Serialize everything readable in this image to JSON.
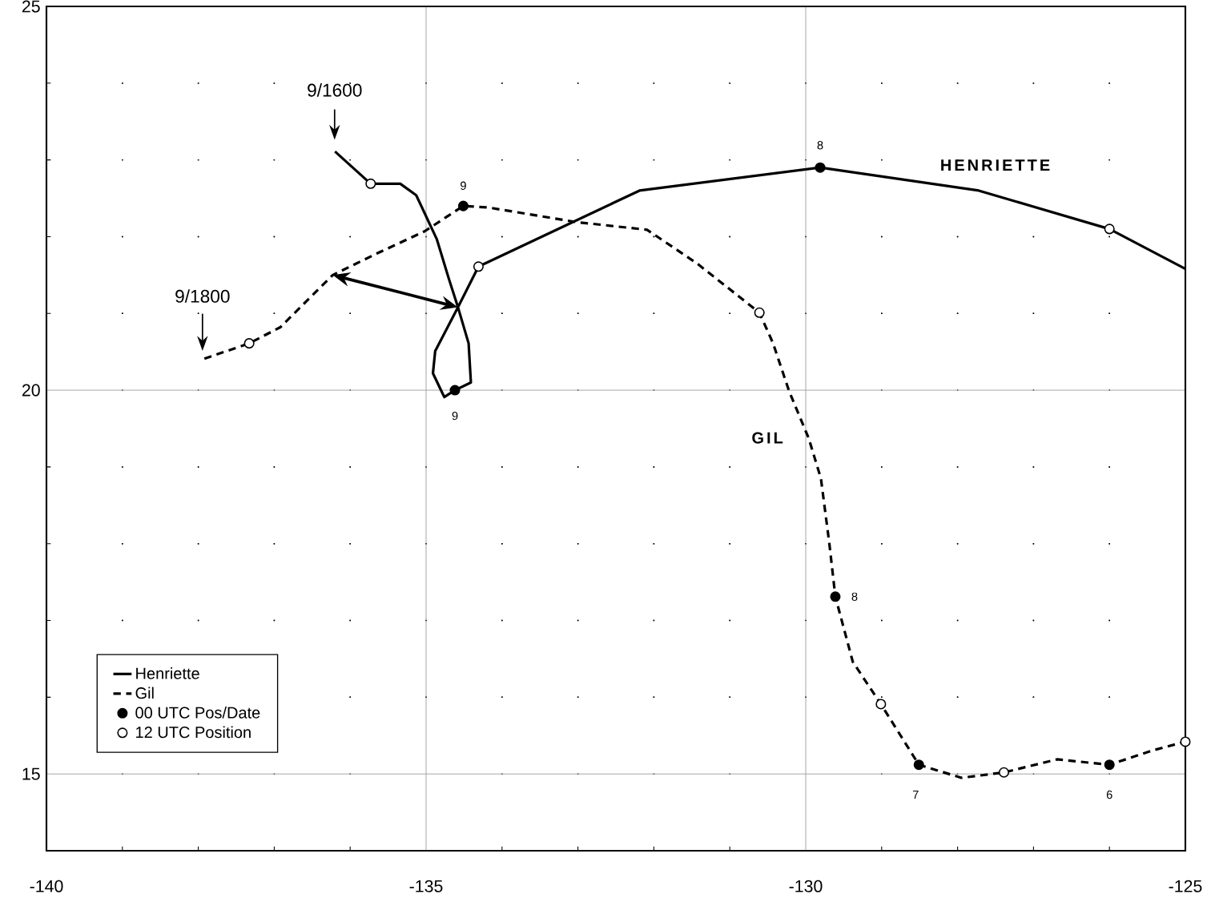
{
  "chart_data": {
    "type": "line",
    "xlim": [
      -140,
      -125
    ],
    "xticks": [
      -140,
      {
        "value": -139,
        "label": null
      },
      {
        "value": -138,
        "label": null
      },
      {
        "value": -137,
        "label": null
      },
      {
        "value": -136,
        "label": null
      },
      -135,
      {
        "value": -134,
        "label": null
      },
      {
        "value": -133,
        "label": null
      },
      {
        "value": -132,
        "label": null
      },
      {
        "value": -131,
        "label": null
      },
      -130,
      {
        "value": -129,
        "label": null
      },
      {
        "value": -128,
        "label": null
      },
      {
        "value": -127,
        "label": null
      },
      {
        "value": -126,
        "label": null
      },
      -125
    ],
    "ylim": [
      14,
      25
    ],
    "yticks": [
      15,
      {
        "value": 16,
        "label": null
      },
      {
        "value": 17,
        "label": null
      },
      {
        "value": 18,
        "label": null
      },
      {
        "value": 19,
        "label": null
      },
      20,
      {
        "value": 21,
        "label": null
      },
      {
        "value": 22,
        "label": null
      },
      {
        "value": 23,
        "label": null
      },
      {
        "value": 24,
        "label": null
      },
      25
    ],
    "grid": true,
    "legend": "bottom left",
    "series": [
      {
        "name": "Henriette",
        "color": "#000000",
        "line_style": "solid",
        "marker": "none",
        "x": [
          -136.2,
          -135.73,
          -135.34,
          -135.13,
          -134.86,
          -134.7,
          -134.58,
          -134.44,
          -134.41,
          -134.62,
          -134.76,
          -134.91,
          -134.88,
          -134.58,
          -134.31,
          -132.19,
          -129.81,
          -127.72,
          -126.0,
          -125.0
        ],
        "values": [
          23.11,
          22.69,
          22.69,
          22.54,
          21.97,
          21.45,
          21.08,
          20.61,
          20.1,
          20.0,
          19.91,
          20.22,
          20.51,
          21.08,
          21.61,
          22.6,
          22.9,
          22.6,
          22.1,
          21.58
        ]
      },
      {
        "name": "Gil",
        "color": "#000000",
        "line_style": "dashed",
        "marker": "none",
        "x": [
          -137.92,
          -137.33,
          -136.92,
          -136.23,
          -135.65,
          -135.02,
          -134.51,
          -134.18,
          -133.02,
          -132.09,
          -131.43,
          -130.61,
          -130.43,
          -130.22,
          -129.96,
          -129.8,
          -129.69,
          -129.61,
          -129.38,
          -129.01,
          -128.51,
          -127.95,
          -127.39,
          -126.69,
          -126.0,
          -125.42,
          -125.0
        ],
        "values": [
          20.41,
          20.61,
          20.82,
          21.5,
          21.78,
          22.07,
          22.4,
          22.38,
          22.19,
          22.09,
          21.65,
          21.01,
          20.61,
          19.99,
          19.37,
          18.85,
          18.01,
          17.31,
          16.46,
          15.91,
          15.12,
          14.95,
          15.02,
          15.19,
          15.12,
          15.31,
          15.42
        ]
      },
      {
        "name": "00 UTC Pos/Date",
        "type": "scatter",
        "color": "#000000",
        "marker": "circle",
        "x": [
          -134.62,
          -129.81,
          -134.51,
          -129.61,
          -128.51,
          -126.0
        ],
        "values": [
          20.0,
          22.9,
          22.4,
          17.31,
          15.12,
          15.12
        ]
      },
      {
        "name": "12 UTC Position",
        "type": "scatter",
        "color": "#ffffff",
        "marker": "circle",
        "x": [
          -135.73,
          -134.31,
          -126.0,
          -137.33,
          -130.61,
          -129.01,
          -127.39,
          -125.0
        ],
        "values": [
          22.69,
          21.61,
          22.1,
          20.61,
          21.01,
          15.91,
          15.02,
          15.42
        ]
      }
    ],
    "annotations": [
      "9/1600",
      "9/1800",
      "HENRIETTE",
      "GIL",
      {
        "text": "9",
        "x": -134.51,
        "y": 22.4
      },
      {
        "text": "9",
        "x": -134.62,
        "y": 20.0
      },
      {
        "text": "8",
        "x": -129.81,
        "y": 22.9
      },
      {
        "text": "8",
        "x": -129.61,
        "y": 17.31
      },
      {
        "text": "7",
        "x": -128.51,
        "y": 15.12
      },
      {
        "text": "6",
        "x": -126.0,
        "y": 15.12
      }
    ]
  }
}
